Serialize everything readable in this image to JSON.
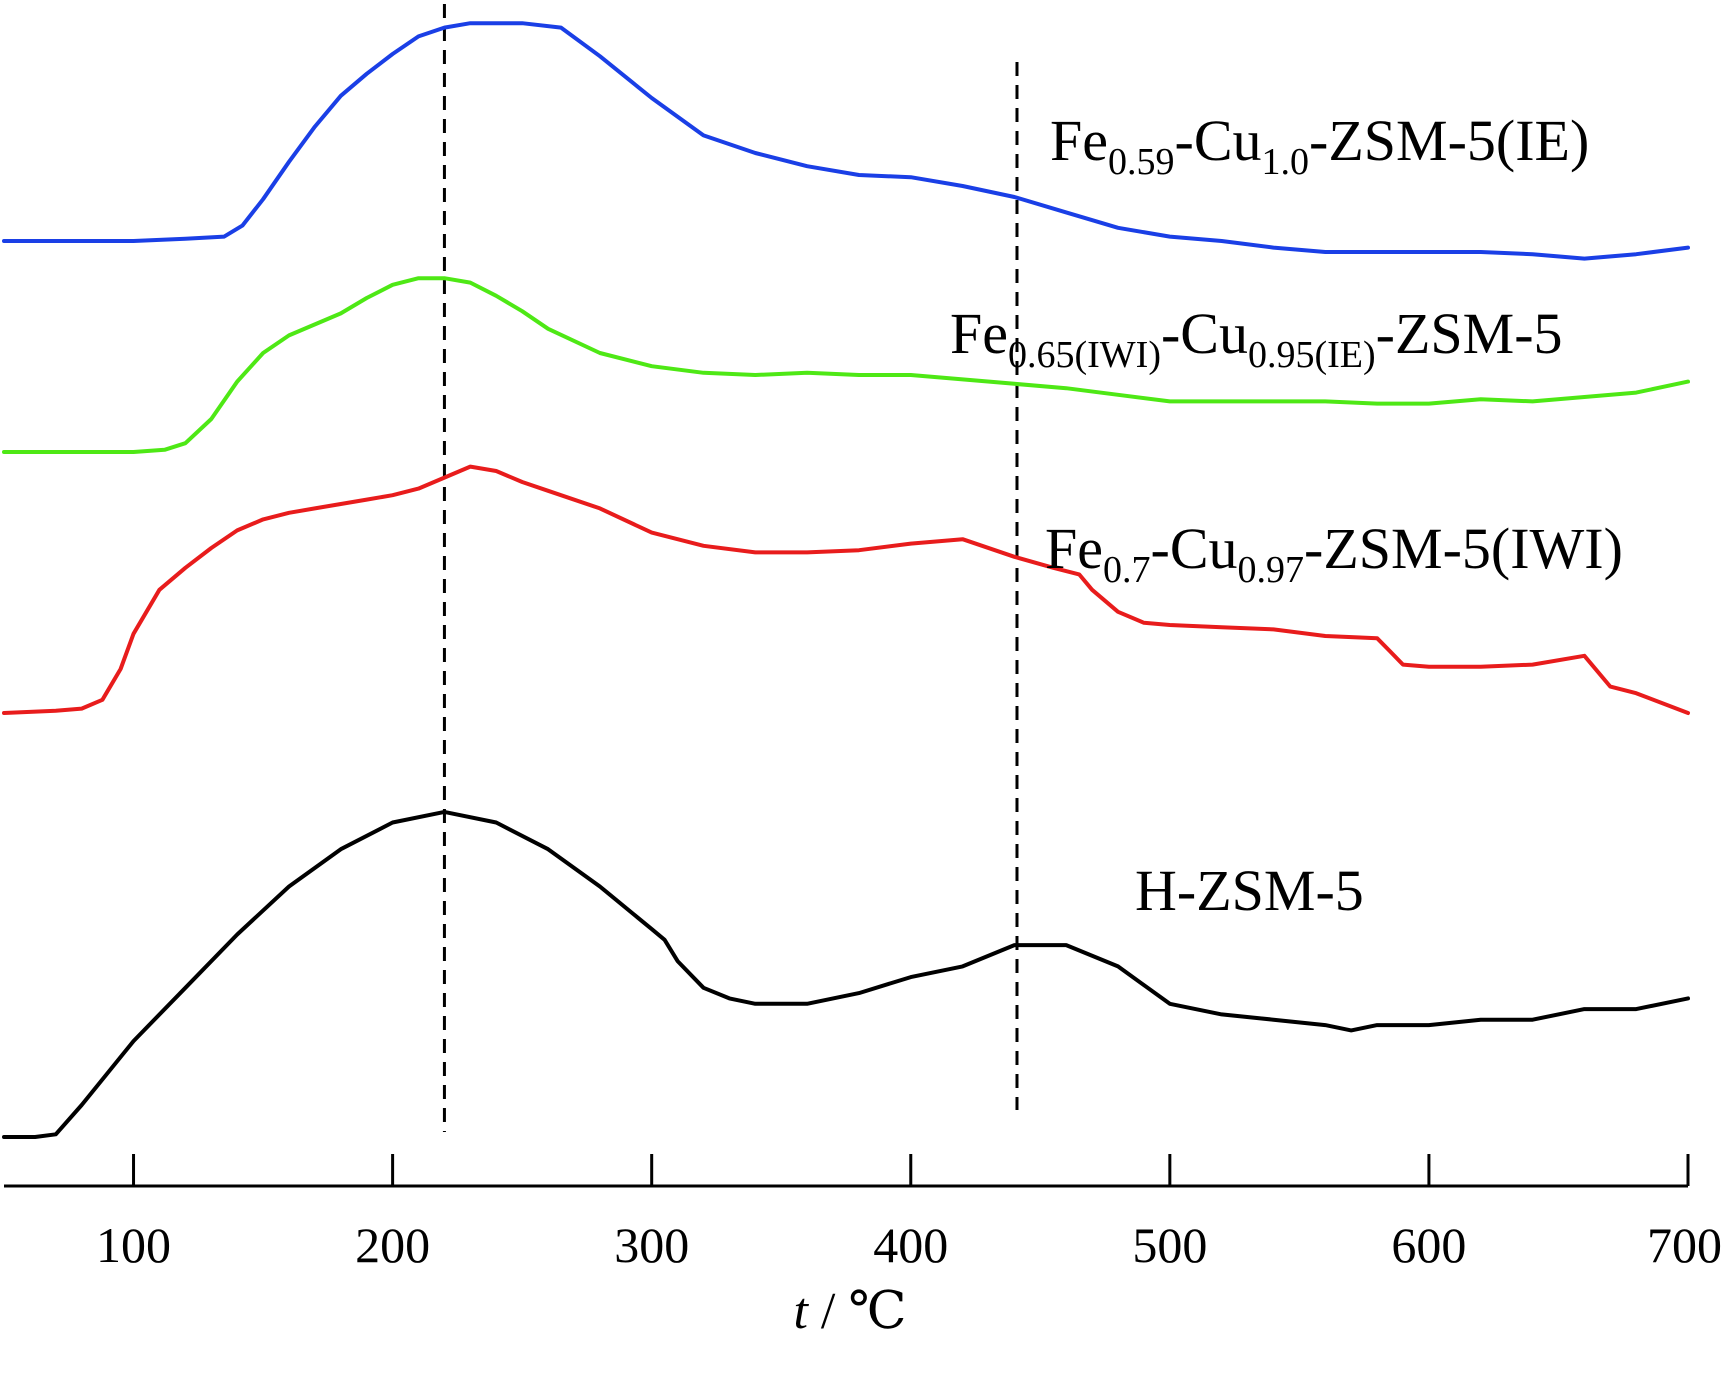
{
  "chart_data": {
    "type": "line",
    "title": "",
    "xlabel": "t",
    "xunit": "℃",
    "ylabel": "",
    "xlim": [
      50,
      700
    ],
    "x_ticks": [
      100,
      200,
      300,
      400,
      500,
      600,
      700
    ],
    "y_axis": "none",
    "grid": false,
    "legend": "none",
    "reference_lines_x": [
      220,
      441
    ],
    "series": [
      {
        "label_parts": [
          {
            "t": "Fe"
          },
          {
            "t": "0.59",
            "sub": true
          },
          {
            "t": "-Cu"
          },
          {
            "t": "1.0",
            "sub": true
          },
          {
            "t": "-ZSM-5(IE)"
          }
        ],
        "color": "#1a3fe6",
        "x": [
          50,
          80,
          100,
          120,
          135,
          142,
          150,
          160,
          170,
          180,
          190,
          200,
          210,
          220,
          230,
          250,
          265,
          280,
          300,
          320,
          340,
          360,
          380,
          400,
          420,
          440,
          460,
          480,
          500,
          520,
          540,
          560,
          580,
          600,
          620,
          640,
          660,
          680,
          700
        ],
        "y": [
          0.0,
          0.0,
          0.0,
          0.01,
          0.02,
          0.07,
          0.19,
          0.36,
          0.52,
          0.66,
          0.76,
          0.85,
          0.93,
          0.97,
          0.99,
          0.99,
          0.97,
          0.84,
          0.65,
          0.48,
          0.4,
          0.34,
          0.3,
          0.29,
          0.25,
          0.2,
          0.13,
          0.06,
          0.02,
          0.0,
          -0.03,
          -0.05,
          -0.05,
          -0.05,
          -0.05,
          -0.06,
          -0.08,
          -0.06,
          -0.03
        ]
      },
      {
        "label_parts": [
          {
            "t": "Fe"
          },
          {
            "t": "0.65(IWI)",
            "sub": true
          },
          {
            "t": "-Cu"
          },
          {
            "t": "0.95(IE)",
            "sub": true
          },
          {
            "t": "-ZSM-5"
          }
        ],
        "color": "#4ee815",
        "x": [
          50,
          80,
          100,
          112,
          120,
          130,
          140,
          150,
          160,
          170,
          180,
          190,
          200,
          210,
          220,
          230,
          240,
          250,
          260,
          280,
          300,
          320,
          340,
          360,
          380,
          400,
          420,
          440,
          460,
          480,
          500,
          520,
          540,
          560,
          580,
          600,
          620,
          640,
          660,
          680,
          700
        ],
        "y": [
          0.0,
          0.0,
          0.0,
          0.01,
          0.04,
          0.15,
          0.32,
          0.45,
          0.53,
          0.58,
          0.63,
          0.7,
          0.76,
          0.79,
          0.79,
          0.77,
          0.71,
          0.64,
          0.56,
          0.45,
          0.39,
          0.36,
          0.35,
          0.36,
          0.35,
          0.35,
          0.33,
          0.31,
          0.29,
          0.26,
          0.23,
          0.23,
          0.23,
          0.23,
          0.22,
          0.22,
          0.24,
          0.23,
          0.25,
          0.27,
          0.32
        ]
      },
      {
        "label_parts": [
          {
            "t": "Fe"
          },
          {
            "t": "0.7",
            "sub": true
          },
          {
            "t": "-Cu"
          },
          {
            "t": "0.97",
            "sub": true
          },
          {
            "t": "-ZSM-5(IWI)"
          }
        ],
        "color": "#e81c1c",
        "x": [
          50,
          70,
          80,
          88,
          95,
          100,
          110,
          120,
          130,
          140,
          150,
          160,
          170,
          180,
          190,
          200,
          210,
          220,
          230,
          240,
          250,
          260,
          280,
          300,
          320,
          340,
          360,
          380,
          400,
          420,
          440,
          455,
          465,
          470,
          480,
          490,
          500,
          520,
          540,
          560,
          580,
          585,
          590,
          600,
          620,
          640,
          660,
          670,
          680,
          700
        ],
        "y": [
          0.0,
          0.01,
          0.02,
          0.06,
          0.2,
          0.36,
          0.56,
          0.66,
          0.75,
          0.83,
          0.88,
          0.91,
          0.93,
          0.95,
          0.97,
          0.99,
          1.02,
          1.07,
          1.12,
          1.1,
          1.05,
          1.01,
          0.93,
          0.82,
          0.76,
          0.73,
          0.73,
          0.74,
          0.77,
          0.79,
          0.71,
          0.66,
          0.63,
          0.56,
          0.46,
          0.41,
          0.4,
          0.39,
          0.38,
          0.35,
          0.34,
          0.28,
          0.22,
          0.21,
          0.21,
          0.22,
          0.26,
          0.12,
          0.09,
          0.0
        ]
      },
      {
        "label_parts": [
          {
            "t": "H-ZSM-5"
          }
        ],
        "color": "#000000",
        "x": [
          50,
          62,
          70,
          80,
          100,
          120,
          140,
          160,
          180,
          200,
          220,
          240,
          260,
          280,
          300,
          305,
          310,
          320,
          330,
          340,
          350,
          360,
          380,
          400,
          420,
          440,
          460,
          480,
          500,
          520,
          540,
          560,
          570,
          580,
          600,
          620,
          640,
          660,
          680,
          700
        ],
        "y": [
          0.0,
          0.0,
          0.005,
          0.06,
          0.18,
          0.28,
          0.38,
          0.47,
          0.54,
          0.59,
          0.61,
          0.59,
          0.54,
          0.47,
          0.39,
          0.37,
          0.33,
          0.28,
          0.26,
          0.25,
          0.25,
          0.25,
          0.27,
          0.3,
          0.32,
          0.36,
          0.36,
          0.32,
          0.25,
          0.23,
          0.22,
          0.21,
          0.2,
          0.21,
          0.21,
          0.22,
          0.22,
          0.24,
          0.24,
          0.26
        ]
      }
    ]
  }
}
